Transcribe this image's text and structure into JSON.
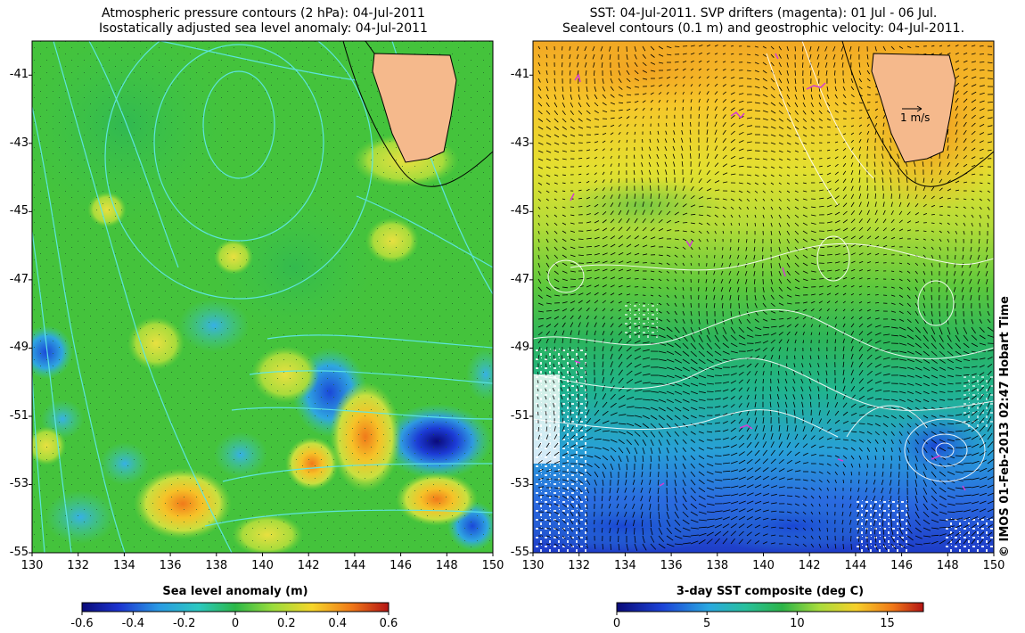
{
  "left_panel": {
    "title_line1": "Atmospheric pressure contours (2 hPa): 04-Jul-2011",
    "title_line2": "Isostatically adjusted sea level anomaly: 04-Jul-2011",
    "colorbar_label": "Sea level anomaly (m)",
    "colorbar_ticks": [
      "-0.6",
      "-0.4",
      "-0.2",
      "0",
      "0.2",
      "0.4",
      "0.6"
    ],
    "colorbar_range": [
      -0.6,
      0.6
    ]
  },
  "right_panel": {
    "title_line1": "SST: 04-Jul-2011. SVP drifters (magenta): 01 Jul - 06 Jul.",
    "title_line2": "Sealevel contours (0.1 m) and geostrophic velocity: 04-Jul-2011.",
    "colorbar_label": "3-day SST composite (deg C)",
    "colorbar_ticks": [
      "0",
      "5",
      "10",
      "15"
    ],
    "colorbar_range": [
      0,
      17
    ],
    "velocity_scale_label": "1 m/s"
  },
  "axes": {
    "lon_ticks": [
      "130",
      "132",
      "134",
      "136",
      "138",
      "140",
      "142",
      "144",
      "146",
      "148",
      "150"
    ],
    "lat_ticks": [
      "-41",
      "-43",
      "-45",
      "-47",
      "-49",
      "-51",
      "-53",
      "-55"
    ],
    "lon_range": [
      130,
      150
    ],
    "lat_range": [
      -55,
      -40
    ]
  },
  "credit": "© IMOS 01-Feb-2013 02:47 Hobart Time",
  "colors": {
    "land": "#f5b98c",
    "sla_contour": "#5fe6e6",
    "drifter": "#d23cd2",
    "velocity_arrow": "#000000",
    "sealevel_contour": "#ffffff"
  }
}
